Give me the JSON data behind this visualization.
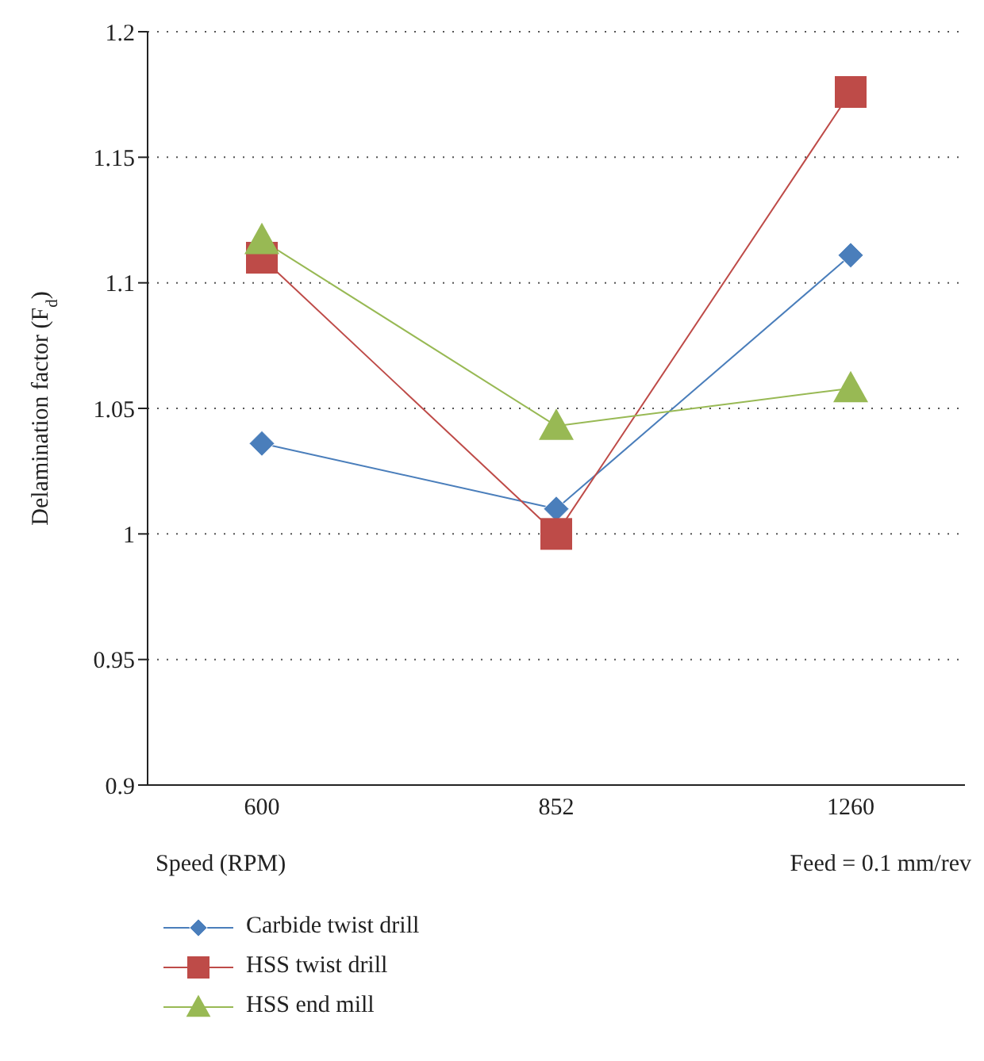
{
  "chart_data": {
    "type": "line",
    "xlabel": "Speed (RPM)",
    "ylabel": "Delamination factor (F$_{d}$)",
    "annotations": [
      "Feed = 0.1 mm/rev"
    ],
    "categories": [
      "600",
      "852",
      "1260"
    ],
    "series": [
      {
        "name": "Carbide twist drill",
        "color": "#4a7ebb",
        "values": [
          1.036,
          1.01,
          1.111
        ],
        "marker": "diamond"
      },
      {
        "name": "HSS twist drill",
        "color": "#be4b48",
        "values": [
          1.11,
          1.0,
          1.176
        ],
        "marker": "square"
      },
      {
        "name": "HSS end mill",
        "color": "#98b954",
        "values": [
          1.117,
          1.043,
          1.058
        ],
        "marker": "triangle"
      }
    ],
    "ylim": [
      0.9,
      1.2
    ],
    "yticks": [
      0.9,
      0.95,
      1,
      1.05,
      1.1,
      1.15,
      1.2
    ],
    "grid": "y",
    "legend": "bottom",
    "line_style": "solid"
  }
}
